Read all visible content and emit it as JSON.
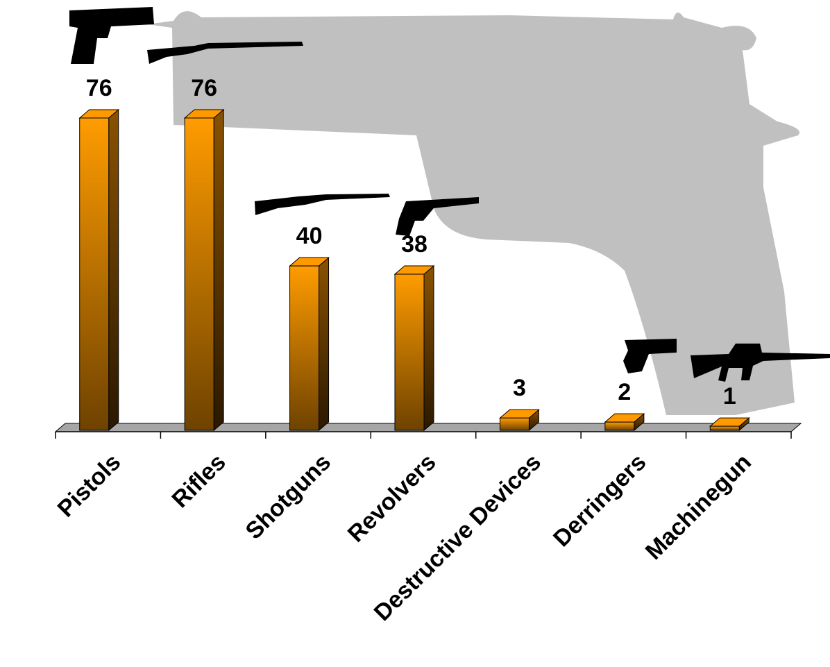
{
  "chart_data": {
    "type": "bar",
    "categories": [
      "Pistols",
      "Rifles",
      "Shotguns",
      "Revolvers",
      "Destructive Devices",
      "Derringers",
      "Machinegun"
    ],
    "values": [
      76,
      76,
      40,
      38,
      3,
      2,
      1
    ],
    "color": "#ff9900"
  }
}
